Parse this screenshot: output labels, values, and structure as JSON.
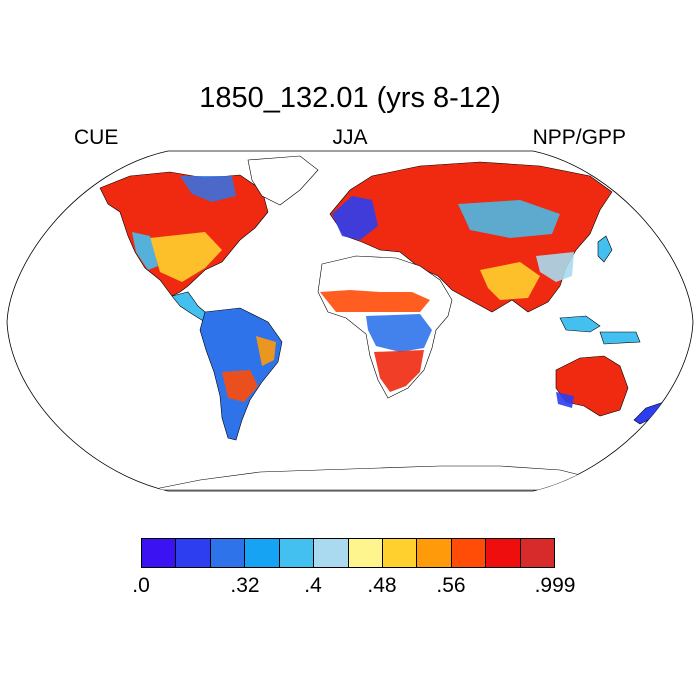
{
  "title": "1850_132.01 (yrs 8-12)",
  "left_label": "CUE",
  "center_label": "JJA",
  "right_label": "NPP/GPP",
  "map": {
    "projection": "robinson",
    "variable": "NPP/GPP",
    "season": "JJA"
  },
  "colorbar": {
    "colors": [
      "#3b12f2",
      "#2c3ef0",
      "#2f73ea",
      "#16a3f3",
      "#44c0f0",
      "#a9daf0",
      "#fff58e",
      "#ffd02e",
      "#ff9a0a",
      "#ff4d08",
      "#ef0e0e",
      "#d72a2a"
    ],
    "labels": [
      ".0",
      ".32",
      ".4",
      ".48",
      ".56",
      ".999"
    ]
  }
}
